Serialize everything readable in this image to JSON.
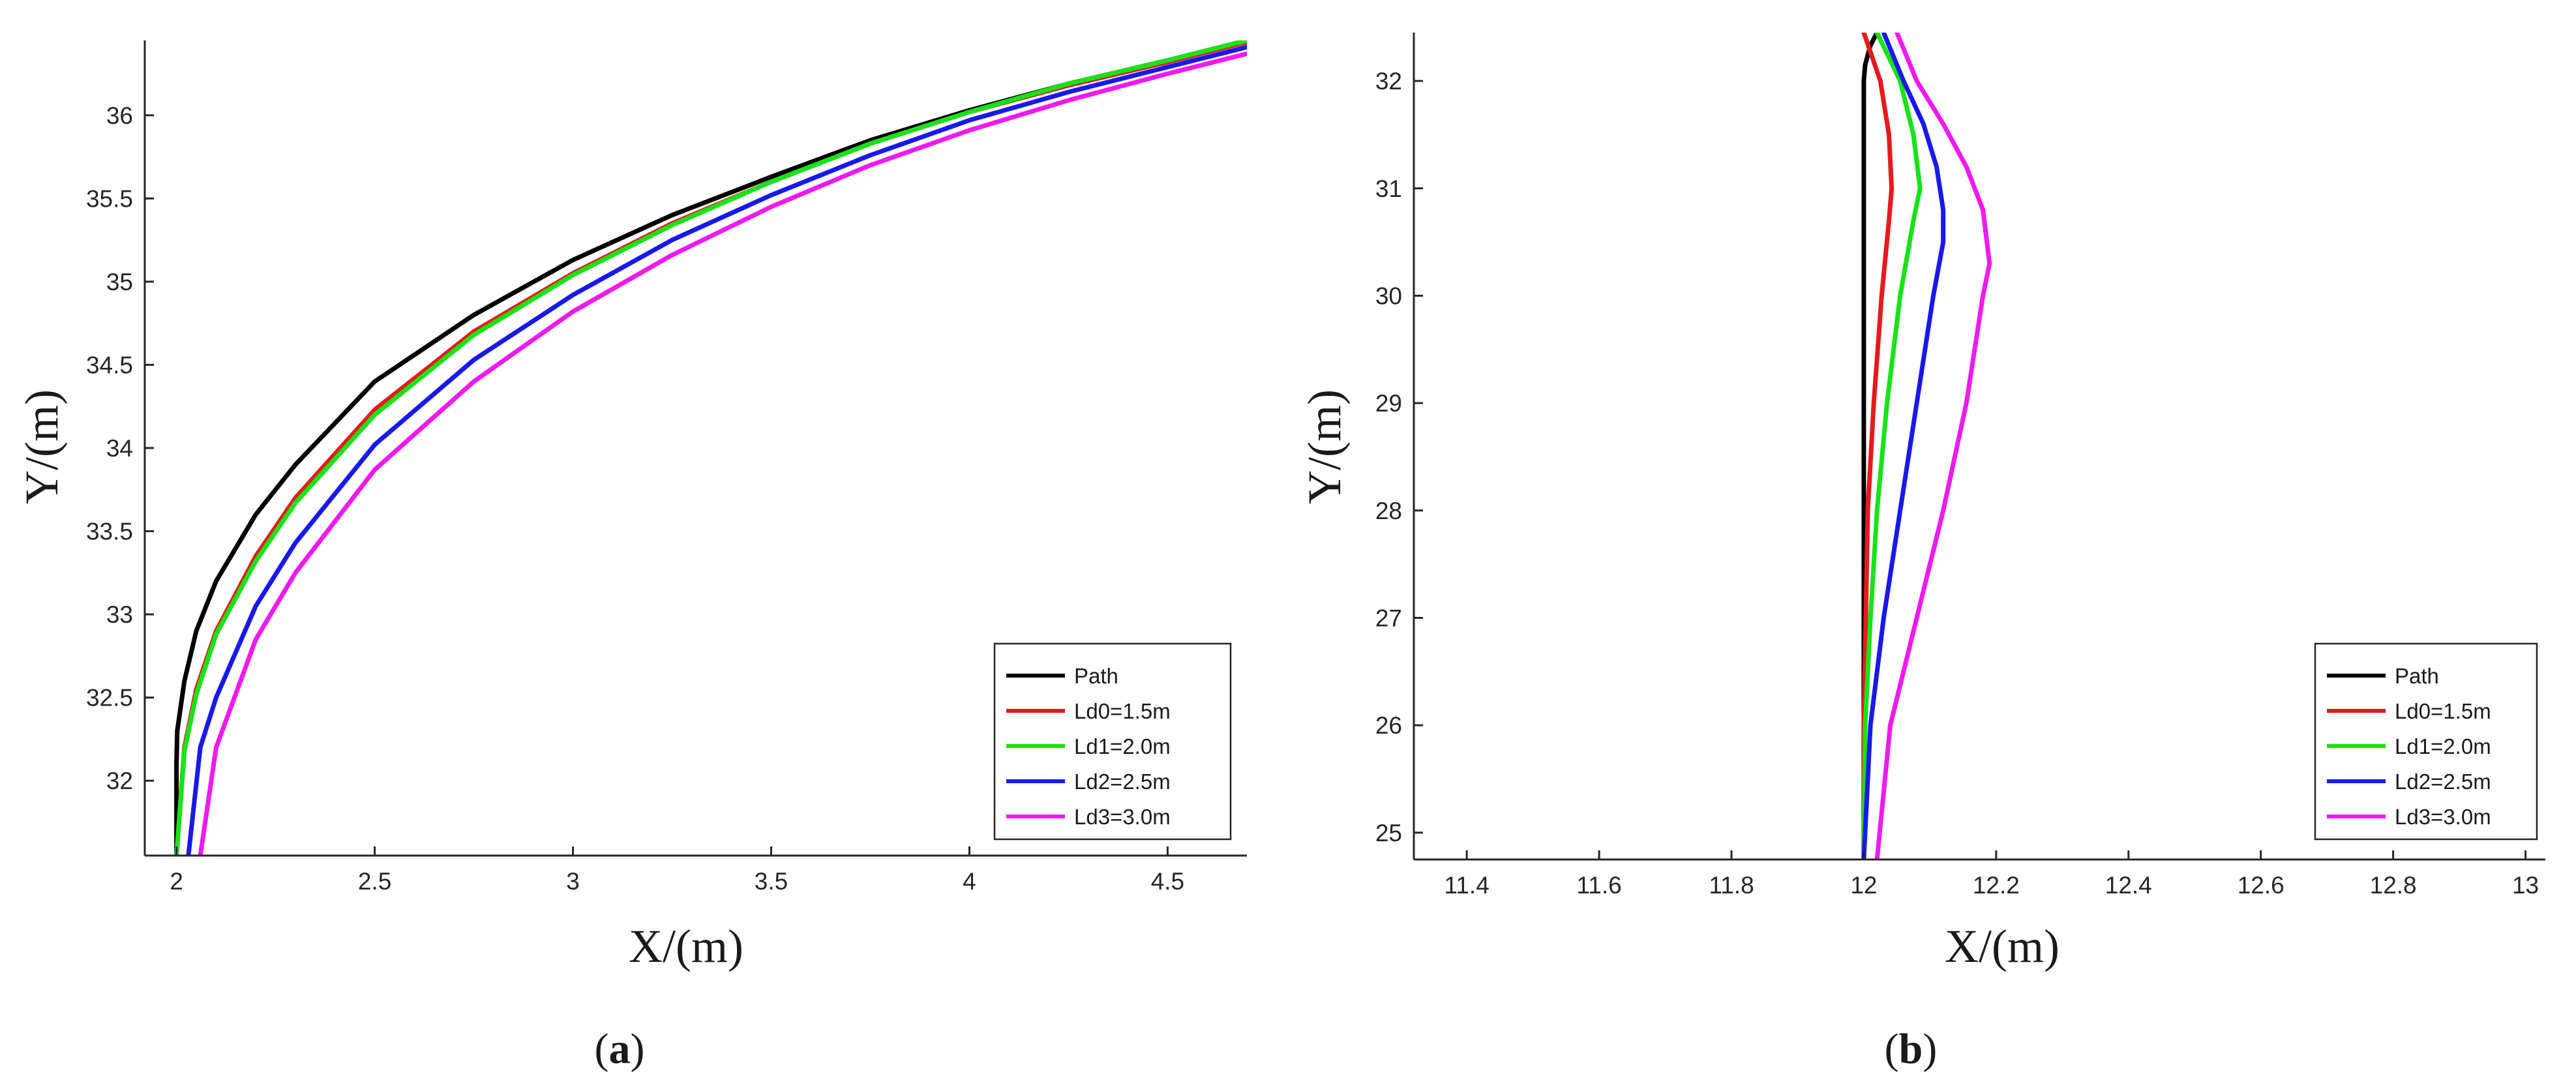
{
  "chart_data": [
    {
      "type": "line",
      "panel_label": "a",
      "xlabel": "X/(m)",
      "ylabel": "Y/(m)",
      "xlim": [
        1.92,
        4.7
      ],
      "ylim": [
        31.55,
        36.45
      ],
      "xticks": [
        2,
        2.5,
        3,
        3.5,
        4,
        4.5
      ],
      "xtick_labels": [
        "2",
        "2.5",
        "3",
        "3.5",
        "4",
        "4.5"
      ],
      "yticks": [
        32,
        32.5,
        33,
        33.5,
        34,
        34.5,
        35,
        35.5,
        36
      ],
      "ytick_labels": [
        "32",
        "32.5",
        "33",
        "33.5",
        "34",
        "34.5",
        "35",
        "35.5",
        "36"
      ],
      "grid": false,
      "legend_position": "bottom-right",
      "series": [
        {
          "name": "Path",
          "color": "#000000",
          "x": [
            2.0,
            2.0,
            2.002,
            2.02,
            2.05,
            2.1,
            2.2,
            2.3,
            2.5,
            2.75,
            3.0,
            3.25,
            3.5,
            3.75,
            4.0,
            4.25,
            4.5,
            4.7
          ],
          "y": [
            31.55,
            32.1,
            32.3,
            32.6,
            32.9,
            33.2,
            33.6,
            33.9,
            34.4,
            34.8,
            35.13,
            35.4,
            35.63,
            35.85,
            36.03,
            36.19,
            36.33,
            36.45
          ]
        },
        {
          "name": "Ld0=1.5m",
          "color": "#e8191c",
          "x": [
            2.0,
            2.02,
            2.05,
            2.1,
            2.2,
            2.3,
            2.5,
            2.75,
            3.0,
            3.25,
            3.5,
            3.75,
            4.0,
            4.25,
            4.5,
            4.7
          ],
          "y": [
            31.55,
            32.2,
            32.55,
            32.9,
            33.35,
            33.7,
            34.23,
            34.7,
            35.05,
            35.35,
            35.6,
            35.83,
            36.02,
            36.18,
            36.32,
            36.44
          ]
        },
        {
          "name": "Ld1=2.0m",
          "color": "#16e416",
          "x": [
            2.0,
            2.02,
            2.05,
            2.1,
            2.2,
            2.3,
            2.5,
            2.75,
            3.0,
            3.25,
            3.5,
            3.75,
            4.0,
            4.25,
            4.5,
            4.7
          ],
          "y": [
            31.55,
            32.18,
            32.52,
            32.88,
            33.32,
            33.67,
            34.2,
            34.68,
            35.04,
            35.34,
            35.6,
            35.83,
            36.02,
            36.19,
            36.33,
            36.45
          ]
        },
        {
          "name": "Ld2=2.5m",
          "color": "#1818f0",
          "x": [
            2.03,
            2.06,
            2.1,
            2.2,
            2.3,
            2.5,
            2.75,
            3.0,
            3.25,
            3.5,
            3.75,
            4.0,
            4.25,
            4.5,
            4.7
          ],
          "y": [
            31.55,
            32.2,
            32.5,
            33.05,
            33.43,
            34.02,
            34.53,
            34.92,
            35.25,
            35.52,
            35.76,
            35.97,
            36.14,
            36.29,
            36.41
          ]
        },
        {
          "name": "Ld3=3.0m",
          "color": "#f019f0",
          "x": [
            2.06,
            2.1,
            2.2,
            2.3,
            2.5,
            2.75,
            3.0,
            3.25,
            3.5,
            3.75,
            4.0,
            4.25,
            4.5,
            4.7
          ],
          "y": [
            31.55,
            32.2,
            32.85,
            33.25,
            33.87,
            34.4,
            34.82,
            35.16,
            35.45,
            35.7,
            35.91,
            36.09,
            36.25,
            36.37
          ]
        }
      ]
    },
    {
      "type": "line",
      "panel_label": "b",
      "xlabel": "X/(m)",
      "ylabel": "Y/(m)",
      "xlim": [
        11.32,
        13.03
      ],
      "ylim": [
        24.75,
        32.45
      ],
      "xticks": [
        11.4,
        11.6,
        11.8,
        12,
        12.2,
        12.4,
        12.6,
        12.8,
        13
      ],
      "xtick_labels": [
        "11.4",
        "11.6",
        "11.8",
        "12",
        "12.2",
        "12.4",
        "12.6",
        "12.8",
        "13"
      ],
      "yticks": [
        25,
        26,
        27,
        28,
        29,
        30,
        31,
        32
      ],
      "ytick_labels": [
        "25",
        "26",
        "27",
        "28",
        "29",
        "30",
        "31",
        "32"
      ],
      "grid": false,
      "legend_position": "bottom-right",
      "series": [
        {
          "name": "Path",
          "color": "#000000",
          "x": [
            12.0,
            12.0,
            12.0,
            12.002,
            12.01,
            12.02
          ],
          "y": [
            24.75,
            28.0,
            32.0,
            32.15,
            32.33,
            32.45
          ]
        },
        {
          "name": "Ld0=1.5m",
          "color": "#e8191c",
          "x": [
            12.0,
            12.0,
            12.003,
            12.006,
            12.015,
            12.027,
            12.038,
            12.042,
            12.038,
            12.025,
            12.0
          ],
          "y": [
            24.75,
            26.0,
            27.0,
            28.0,
            29.0,
            30.0,
            30.7,
            31.0,
            31.5,
            32.0,
            32.45
          ]
        },
        {
          "name": "Ld1=2.0m",
          "color": "#16e416",
          "x": [
            12.0,
            12.002,
            12.01,
            12.02,
            12.035,
            12.055,
            12.075,
            12.085,
            12.075,
            12.055,
            12.02
          ],
          "y": [
            24.75,
            26.0,
            27.0,
            28.0,
            29.0,
            30.0,
            30.7,
            31.0,
            31.5,
            32.0,
            32.45
          ]
        },
        {
          "name": "Ld2=2.5m",
          "color": "#1818f0",
          "x": [
            12.0,
            12.01,
            12.03,
            12.055,
            12.08,
            12.105,
            12.12,
            12.12,
            12.11,
            12.09,
            12.06,
            12.03
          ],
          "y": [
            24.75,
            26.0,
            27.0,
            28.0,
            29.0,
            30.0,
            30.5,
            30.8,
            31.2,
            31.6,
            32.0,
            32.45
          ]
        },
        {
          "name": "Ld3=3.0m",
          "color": "#f019f0",
          "x": [
            12.02,
            12.04,
            12.08,
            12.12,
            12.155,
            12.18,
            12.19,
            12.18,
            12.155,
            12.12,
            12.08,
            12.05
          ],
          "y": [
            24.75,
            26.0,
            27.0,
            28.0,
            29.0,
            30.0,
            30.3,
            30.8,
            31.2,
            31.6,
            32.0,
            32.45
          ]
        }
      ]
    }
  ]
}
